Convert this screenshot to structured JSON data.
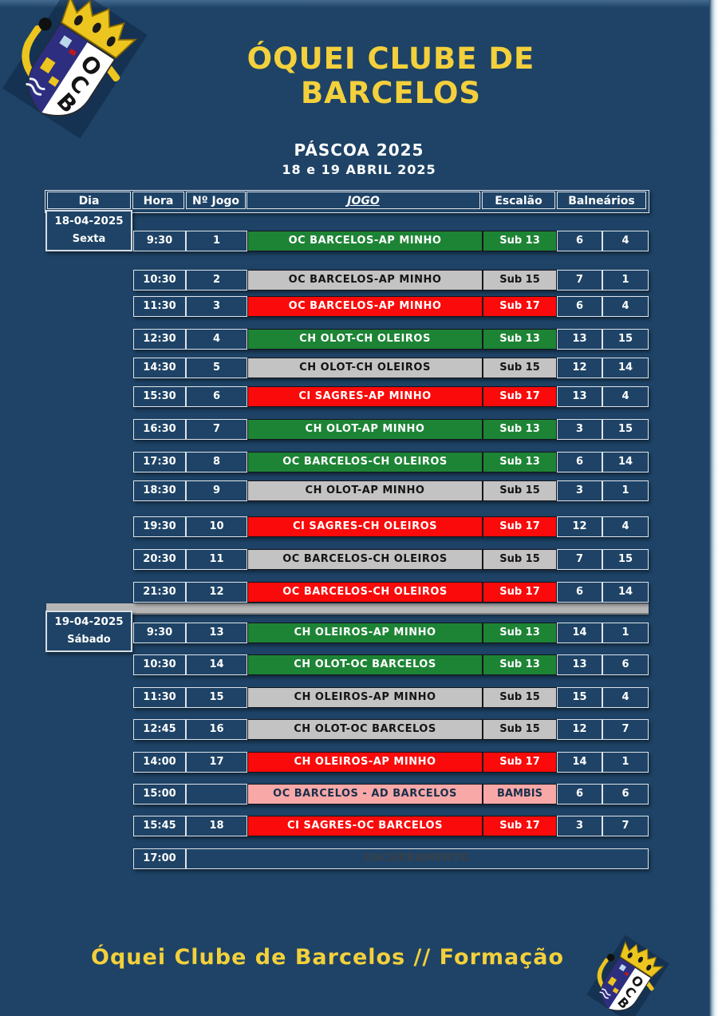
{
  "page": {
    "club_name": "ÓQUEI CLUBE DE BARCELOS",
    "event_title": "PÁSCOA 2025",
    "event_dates": "18 e 19 ABRIL 2025",
    "footer_text": "Óquei Clube de Barcelos // Formação",
    "crest_letters": [
      "O",
      "C",
      "B"
    ]
  },
  "colors": {
    "background": "#1e4366",
    "title_yellow": "#f3d03c",
    "sub13_green": "#1d8435",
    "sub15_gray": "#c3c3c3",
    "sub17_red": "#fa0a0a",
    "bambis_pink": "#f9a8a8",
    "divider_gray": "#b5b5b5",
    "cell_border_light": "#dfe4ea"
  },
  "table": {
    "columns": [
      "Dia",
      "Hora",
      "Nº Jogo",
      "JOGO",
      "Escalão",
      "Balneários"
    ]
  },
  "schedule": {
    "days": [
      {
        "date": "18-04-2025",
        "weekday": "Sexta"
      },
      {
        "date": "19-04-2025",
        "weekday": "Sábado"
      }
    ],
    "rows": [
      {
        "day": 0,
        "hora": "9:30",
        "num": "1",
        "jogo": "OC BARCELOS-AP MINHO",
        "escalao": "Sub 13",
        "baln1": "6",
        "baln2": "4",
        "category": "sub13"
      },
      {
        "day": 0,
        "hora": "10:30",
        "num": "2",
        "jogo": "OC BARCELOS-AP MINHO",
        "escalao": "Sub 15",
        "baln1": "7",
        "baln2": "1",
        "category": "sub15"
      },
      {
        "day": 0,
        "hora": "11:30",
        "num": "3",
        "jogo": "OC BARCELOS-AP MINHO",
        "escalao": "Sub 17",
        "baln1": "6",
        "baln2": "4",
        "category": "sub17"
      },
      {
        "day": 0,
        "hora": "12:30",
        "num": "4",
        "jogo": "CH OLOT-CH OLEIROS",
        "escalao": "Sub 13",
        "baln1": "13",
        "baln2": "15",
        "category": "sub13"
      },
      {
        "day": 0,
        "hora": "14:30",
        "num": "5",
        "jogo": "CH OLOT-CH OLEIROS",
        "escalao": "Sub 15",
        "baln1": "12",
        "baln2": "14",
        "category": "sub15"
      },
      {
        "day": 0,
        "hora": "15:30",
        "num": "6",
        "jogo": "CI SAGRES-AP MINHO",
        "escalao": "Sub 17",
        "baln1": "13",
        "baln2": "4",
        "category": "sub17"
      },
      {
        "day": 0,
        "hora": "16:30",
        "num": "7",
        "jogo": "CH OLOT-AP MINHO",
        "escalao": "Sub 13",
        "baln1": "3",
        "baln2": "15",
        "category": "sub13"
      },
      {
        "day": 0,
        "hora": "17:30",
        "num": "8",
        "jogo": "OC BARCELOS-CH OLEIROS",
        "escalao": "Sub 13",
        "baln1": "6",
        "baln2": "14",
        "category": "sub13"
      },
      {
        "day": 0,
        "hora": "18:30",
        "num": "9",
        "jogo": "CH OLOT-AP MINHO",
        "escalao": "Sub 15",
        "baln1": "3",
        "baln2": "1",
        "category": "sub15"
      },
      {
        "day": 0,
        "hora": "19:30",
        "num": "10",
        "jogo": "CI SAGRES-CH OLEIROS",
        "escalao": "Sub 17",
        "baln1": "12",
        "baln2": "4",
        "category": "sub17"
      },
      {
        "day": 0,
        "hora": "20:30",
        "num": "11",
        "jogo": "OC BARCELOS-CH OLEIROS",
        "escalao": "Sub 15",
        "baln1": "7",
        "baln2": "15",
        "category": "sub15"
      },
      {
        "day": 0,
        "hora": "21:30",
        "num": "12",
        "jogo": "OC BARCELOS-CH OLEIROS",
        "escalao": "Sub 17",
        "baln1": "6",
        "baln2": "14",
        "category": "sub17"
      },
      {
        "day": 1,
        "hora": "9:30",
        "num": "13",
        "jogo": "CH OLEIROS-AP MINHO",
        "escalao": "Sub 13",
        "baln1": "14",
        "baln2": "1",
        "category": "sub13"
      },
      {
        "day": 1,
        "hora": "10:30",
        "num": "14",
        "jogo": "CH OLOT-OC BARCELOS",
        "escalao": "Sub 13",
        "baln1": "13",
        "baln2": "6",
        "category": "sub13"
      },
      {
        "day": 1,
        "hora": "11:30",
        "num": "15",
        "jogo": "CH OLEIROS-AP MINHO",
        "escalao": "Sub 15",
        "baln1": "15",
        "baln2": "4",
        "category": "sub15"
      },
      {
        "day": 1,
        "hora": "12:45",
        "num": "16",
        "jogo": "CH OLOT-OC BARCELOS",
        "escalao": "Sub 15",
        "baln1": "12",
        "baln2": "7",
        "category": "sub15"
      },
      {
        "day": 1,
        "hora": "14:00",
        "num": "17",
        "jogo": "CH OLEIROS-AP MINHO",
        "escalao": "Sub 17",
        "baln1": "14",
        "baln2": "1",
        "category": "sub17"
      },
      {
        "day": 1,
        "hora": "15:00",
        "num": "",
        "jogo": "OC BARCELOS - AD BARCELOS",
        "escalao": "BAMBIS",
        "baln1": "6",
        "baln2": "6",
        "category": "bambis"
      },
      {
        "day": 1,
        "hora": "15:45",
        "num": "18",
        "jogo": "CI SAGRES-OC BARCELOS",
        "escalao": "Sub 17",
        "baln1": "3",
        "baln2": "7",
        "category": "sub17"
      },
      {
        "day": 1,
        "hora": "17:00",
        "type": "closing",
        "jogo": "ENCERRAMENTO",
        "category": "closing"
      }
    ]
  }
}
